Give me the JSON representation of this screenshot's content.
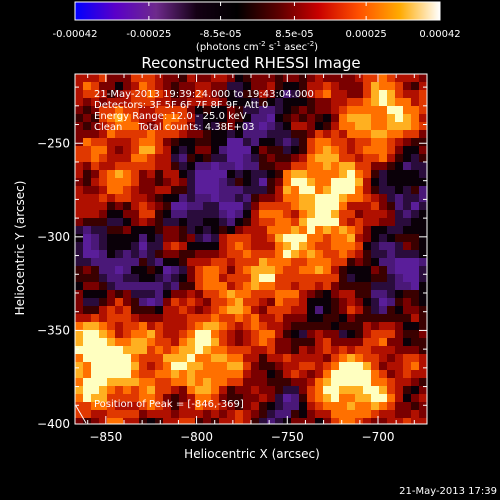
{
  "colorbar": {
    "ticks": [
      "-0.00042",
      "-0.00025",
      "-8.5e-05",
      "8.5e-05",
      "0.00025",
      "0.00042"
    ],
    "tick_values": [
      -0.00042,
      -0.00025,
      -8.5e-05,
      8.5e-05,
      0.00025,
      0.00042
    ],
    "range": [
      -0.00042,
      0.00042
    ],
    "unit_prefix": "(photons cm",
    "unit_sup1": "-2",
    "unit_mid": " s",
    "unit_sup2": "-1",
    "unit_mid2": " asec",
    "unit_sup3": "-2",
    "unit_suffix": ")",
    "colors": [
      "#0000ff",
      "#5a00c8",
      "#6e2a8c",
      "#140014",
      "#000000",
      "#5a0000",
      "#c80000",
      "#ff5000",
      "#ffaa00",
      "#ffffff"
    ]
  },
  "chart_data": {
    "type": "heatmap",
    "title": "Reconstructed RHESSI Image",
    "xlabel": "Heliocentric X (arcsec)",
    "ylabel": "Heliocentric Y (arcsec)",
    "xlim": [
      -867,
      -673
    ],
    "ylim": [
      -400,
      -213
    ],
    "x_ticks": [
      -850,
      -800,
      -750,
      -700
    ],
    "y_ticks": [
      -250,
      -300,
      -350,
      -400
    ],
    "x_tick_labels": [
      "−850",
      "−800",
      "−750",
      "−700"
    ],
    "y_tick_labels": [
      "−250",
      "−300",
      "−350",
      "−400"
    ],
    "peak": [
      -846,
      -369
    ]
  },
  "annotations": {
    "line1": "21-May-2013 19:39:24.000 to 19:43:04.000",
    "line2": "Detectors: 3F 5F 6F 7F 8F 9F, Att 0",
    "line3": "Energy Range: 12.0 - 25.0 keV",
    "line4": "Clean     Total counts: 4.38E+03",
    "peak_label": "Position of Peak = [-846,-369]"
  },
  "footer": {
    "timestamp": "21-May-2013 17:39"
  }
}
